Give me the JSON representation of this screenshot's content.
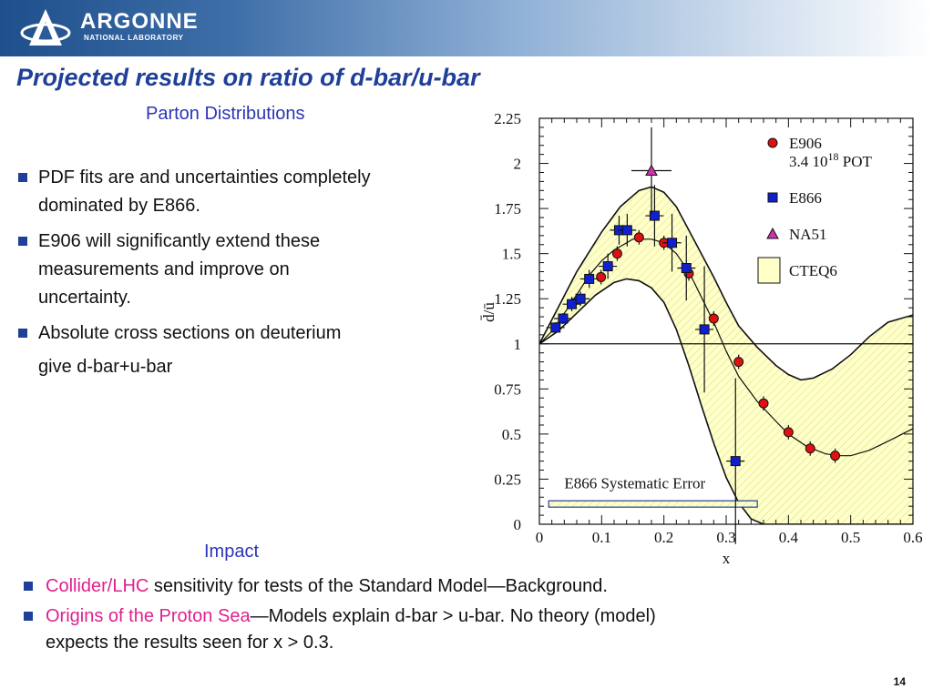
{
  "header": {
    "logo_name": "ARGONNE",
    "logo_sub": "NATIONAL LABORATORY",
    "title": "Projected results on ratio of d-bar/u-bar"
  },
  "left": {
    "subhead": "Parton Distributions",
    "bullets": [
      {
        "lines": [
          "PDF fits are and uncertainties completely",
          "dominated by E866."
        ]
      },
      {
        "lines": [
          "E906 will significantly extend these",
          "measurements and improve on",
          "uncertainty."
        ]
      },
      {
        "lines": [
          "Absolute cross sections on deuterium"
        ]
      }
    ],
    "continuation": "give d-bar+u-bar"
  },
  "impact": {
    "subhead": "Impact",
    "bullets": [
      {
        "highlight": "Collider/LHC",
        "rest": " sensitivity for tests of the Standard Model—Background."
      },
      {
        "highlight": "Origins of the Proton Sea",
        "rest": "—Models explain d-bar > u-bar.  No theory (model)",
        "line2": "expects the results seen for x > 0.3."
      }
    ]
  },
  "page_number": "14",
  "colors": {
    "accent": "#1f3f99",
    "highlight": "#e0208f",
    "e906": "#e01010",
    "e866": "#1020d0",
    "na51": "#cc33aa",
    "cteq_band": "#ffffc8"
  },
  "chart_data": {
    "type": "scatter",
    "xlabel": "x",
    "ylabel": "d̄/ū",
    "xlim": [
      0,
      0.6
    ],
    "ylim": [
      0,
      2.25
    ],
    "x_ticks": [
      "0",
      "0.1",
      "0.2",
      "0.3",
      "0.4",
      "0.5",
      "0.6"
    ],
    "y_ticks": [
      "0",
      "0.25",
      "0.5",
      "0.75",
      "1",
      "1.25",
      "1.5",
      "1.75",
      "2",
      "2.25"
    ],
    "reference_line": 1,
    "systematic_label": "E866 Systematic Error",
    "legend_placement": "top-right",
    "legend": [
      {
        "name": "E906",
        "sub": "3.4 10",
        "sup": "18",
        "sub_tail": " POT",
        "marker": "circle"
      },
      {
        "name": "E866",
        "marker": "square"
      },
      {
        "name": "NA51",
        "marker": "triangle"
      },
      {
        "name": "CTEQ6",
        "marker": "band"
      }
    ],
    "cteq_central": [
      [
        0,
        1.0
      ],
      [
        0.02,
        1.07
      ],
      [
        0.05,
        1.22
      ],
      [
        0.08,
        1.38
      ],
      [
        0.1,
        1.46
      ],
      [
        0.12,
        1.52
      ],
      [
        0.15,
        1.58
      ],
      [
        0.18,
        1.58
      ],
      [
        0.2,
        1.56
      ],
      [
        0.22,
        1.5
      ],
      [
        0.24,
        1.4
      ],
      [
        0.26,
        1.26
      ],
      [
        0.28,
        1.12
      ],
      [
        0.3,
        0.96
      ],
      [
        0.32,
        0.82
      ],
      [
        0.35,
        0.68
      ],
      [
        0.38,
        0.57
      ],
      [
        0.4,
        0.5
      ],
      [
        0.43,
        0.43
      ],
      [
        0.46,
        0.39
      ],
      [
        0.48,
        0.38
      ],
      [
        0.5,
        0.38
      ],
      [
        0.53,
        0.41
      ],
      [
        0.56,
        0.46
      ],
      [
        0.6,
        0.53
      ]
    ],
    "cteq_upper": [
      [
        0,
        1.0
      ],
      [
        0.03,
        1.2
      ],
      [
        0.06,
        1.4
      ],
      [
        0.1,
        1.62
      ],
      [
        0.13,
        1.76
      ],
      [
        0.16,
        1.85
      ],
      [
        0.18,
        1.87
      ],
      [
        0.2,
        1.84
      ],
      [
        0.22,
        1.76
      ],
      [
        0.24,
        1.63
      ],
      [
        0.26,
        1.5
      ],
      [
        0.28,
        1.37
      ],
      [
        0.3,
        1.23
      ],
      [
        0.32,
        1.1
      ],
      [
        0.35,
        0.98
      ],
      [
        0.38,
        0.88
      ],
      [
        0.4,
        0.83
      ],
      [
        0.42,
        0.8
      ],
      [
        0.44,
        0.81
      ],
      [
        0.47,
        0.86
      ],
      [
        0.5,
        0.94
      ],
      [
        0.53,
        1.04
      ],
      [
        0.56,
        1.12
      ],
      [
        0.6,
        1.16
      ]
    ],
    "cteq_lower": [
      [
        0,
        1.0
      ],
      [
        0.03,
        1.07
      ],
      [
        0.06,
        1.17
      ],
      [
        0.09,
        1.27
      ],
      [
        0.12,
        1.34
      ],
      [
        0.14,
        1.36
      ],
      [
        0.16,
        1.35
      ],
      [
        0.18,
        1.31
      ],
      [
        0.2,
        1.23
      ],
      [
        0.22,
        1.08
      ],
      [
        0.24,
        0.88
      ],
      [
        0.26,
        0.66
      ],
      [
        0.28,
        0.45
      ],
      [
        0.3,
        0.26
      ],
      [
        0.32,
        0.12
      ],
      [
        0.34,
        0.03
      ],
      [
        0.36,
        0.0
      ],
      [
        0.6,
        0.0
      ]
    ],
    "series": [
      {
        "name": "E906",
        "marker": "circle",
        "points": [
          {
            "x": 0.099,
            "y": 1.37,
            "dy": 0.04
          },
          {
            "x": 0.125,
            "y": 1.5,
            "dy": 0.04
          },
          {
            "x": 0.16,
            "y": 1.59,
            "dy": 0.04
          },
          {
            "x": 0.2,
            "y": 1.56,
            "dy": 0.04
          },
          {
            "x": 0.24,
            "y": 1.39,
            "dy": 0.04
          },
          {
            "x": 0.28,
            "y": 1.14,
            "dy": 0.04
          },
          {
            "x": 0.32,
            "y": 0.9,
            "dy": 0.04
          },
          {
            "x": 0.36,
            "y": 0.67,
            "dy": 0.04
          },
          {
            "x": 0.4,
            "y": 0.51,
            "dy": 0.04
          },
          {
            "x": 0.435,
            "y": 0.42,
            "dy": 0.04
          },
          {
            "x": 0.475,
            "y": 0.38,
            "dy": 0.04
          }
        ]
      },
      {
        "name": "E866",
        "marker": "square",
        "points": [
          {
            "x": 0.026,
            "y": 1.09,
            "dy": 0.03
          },
          {
            "x": 0.038,
            "y": 1.14,
            "dy": 0.03
          },
          {
            "x": 0.052,
            "y": 1.22,
            "dy": 0.04
          },
          {
            "x": 0.066,
            "y": 1.25,
            "dy": 0.04
          },
          {
            "x": 0.08,
            "y": 1.36,
            "dy": 0.05
          },
          {
            "x": 0.11,
            "y": 1.43,
            "dy": 0.07
          },
          {
            "x": 0.128,
            "y": 1.63,
            "dy": 0.08
          },
          {
            "x": 0.141,
            "y": 1.63,
            "dy": 0.09
          },
          {
            "x": 0.185,
            "y": 1.71,
            "dy": 0.17
          },
          {
            "x": 0.213,
            "y": 1.56,
            "dy": 0.16
          },
          {
            "x": 0.236,
            "y": 1.42,
            "dy": 0.18
          },
          {
            "x": 0.265,
            "y": 1.08,
            "dy": 0.35
          },
          {
            "x": 0.315,
            "y": 0.35,
            "dy": 0.46
          }
        ]
      },
      {
        "name": "NA51",
        "marker": "triangle",
        "points": [
          {
            "x": 0.18,
            "y": 1.96,
            "dy": 0.24
          }
        ]
      }
    ]
  }
}
